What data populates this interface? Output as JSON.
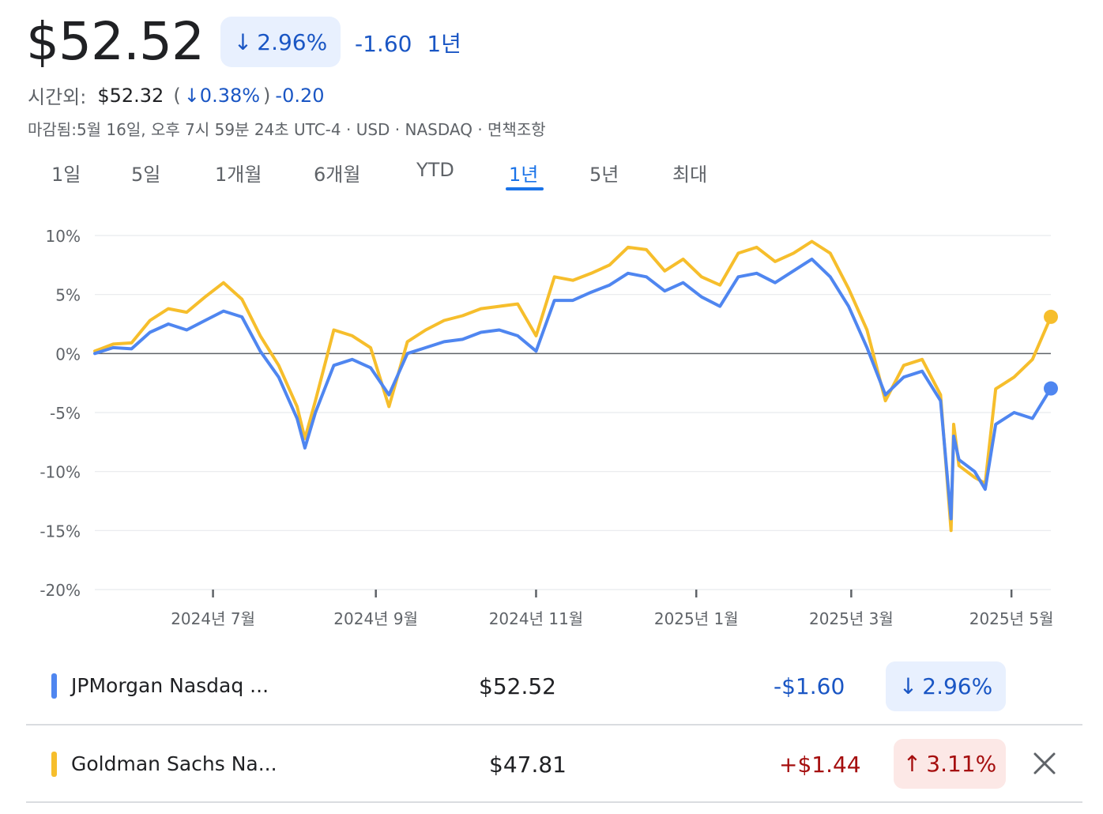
{
  "header": {
    "price": "$52.52",
    "change_pct": "2.96%",
    "change_pct_icon": "arrow-down-icon",
    "change_abs": "-1.60",
    "period": "1년",
    "after_hours_label": "시간외:",
    "after_hours_price": "$52.32",
    "after_hours_pct": "0.38%",
    "after_hours_abs": "-0.20",
    "status_line": "마감됨:5월 16일, 오후 7시 59분 24초 UTC-4 · USD · NASDAQ · 면책조항"
  },
  "tabs": [
    {
      "label": "1일",
      "active": false
    },
    {
      "label": "5일",
      "active": false
    },
    {
      "label": "1개월",
      "active": false
    },
    {
      "label": "6개월",
      "active": false
    },
    {
      "label": "YTD",
      "active": false
    },
    {
      "label": "1년",
      "active": true
    },
    {
      "label": "5년",
      "active": false
    },
    {
      "label": "최대",
      "active": false
    }
  ],
  "colors": {
    "jpm": "#4f86f0",
    "gs": "#f6be2c",
    "negative": "#1a56c4",
    "positive": "#a50e0e",
    "active_tab": "#1a73e8"
  },
  "chart_data": {
    "type": "line",
    "y_unit": "%",
    "ylim": [
      -20,
      10
    ],
    "y_ticks": [
      "10%",
      "5%",
      "0%",
      "-5%",
      "-10%",
      "-15%",
      "-20%"
    ],
    "x_ticks": [
      "2024년 7월",
      "2024년 9월",
      "2024년 11월",
      "2025년 1월",
      "2025년 3월",
      "2025년 5월"
    ],
    "x_tick_dates": [
      "2024-07-01",
      "2024-09-01",
      "2024-11-01",
      "2025-01-01",
      "2025-03-01",
      "2025-05-01"
    ],
    "grid": true,
    "baseline": 0,
    "series": [
      {
        "name": "JPMorgan Nasdaq ...",
        "color": "#4f86f0",
        "x": [
          "2024-05-17",
          "2024-05-24",
          "2024-05-31",
          "2024-06-07",
          "2024-06-14",
          "2024-06-21",
          "2024-06-28",
          "2024-07-05",
          "2024-07-12",
          "2024-07-19",
          "2024-07-26",
          "2024-08-02",
          "2024-08-05",
          "2024-08-09",
          "2024-08-16",
          "2024-08-23",
          "2024-08-30",
          "2024-09-06",
          "2024-09-13",
          "2024-09-20",
          "2024-09-27",
          "2024-10-04",
          "2024-10-11",
          "2024-10-18",
          "2024-10-25",
          "2024-11-01",
          "2024-11-08",
          "2024-11-15",
          "2024-11-22",
          "2024-11-29",
          "2024-12-06",
          "2024-12-13",
          "2024-12-20",
          "2024-12-27",
          "2025-01-03",
          "2025-01-10",
          "2025-01-17",
          "2025-01-24",
          "2025-01-31",
          "2025-02-07",
          "2025-02-14",
          "2025-02-21",
          "2025-02-28",
          "2025-03-07",
          "2025-03-14",
          "2025-03-21",
          "2025-03-28",
          "2025-04-04",
          "2025-04-08",
          "2025-04-09",
          "2025-04-11",
          "2025-04-17",
          "2025-04-21",
          "2025-04-25",
          "2025-05-02",
          "2025-05-09",
          "2025-05-16"
        ],
        "y": [
          0.0,
          0.5,
          0.4,
          1.8,
          2.5,
          2.0,
          2.8,
          3.6,
          3.1,
          0.2,
          -2.0,
          -5.5,
          -8.0,
          -5.0,
          -1.0,
          -0.5,
          -1.2,
          -3.5,
          0.0,
          0.5,
          1.0,
          1.2,
          1.8,
          2.0,
          1.5,
          0.2,
          4.5,
          4.5,
          5.2,
          5.8,
          6.8,
          6.5,
          5.3,
          6.0,
          4.8,
          4.0,
          6.5,
          6.8,
          6.0,
          7.0,
          8.0,
          6.5,
          4.0,
          0.5,
          -3.5,
          -2.0,
          -1.5,
          -4.0,
          -14.0,
          -7.0,
          -9.0,
          -10.0,
          -11.5,
          -6.0,
          -5.0,
          -5.5,
          -2.96
        ]
      },
      {
        "name": "Goldman Sachs Na...",
        "color": "#f6be2c",
        "x": [
          "2024-05-17",
          "2024-05-24",
          "2024-05-31",
          "2024-06-07",
          "2024-06-14",
          "2024-06-21",
          "2024-06-28",
          "2024-07-05",
          "2024-07-12",
          "2024-07-19",
          "2024-07-26",
          "2024-08-02",
          "2024-08-05",
          "2024-08-09",
          "2024-08-16",
          "2024-08-23",
          "2024-08-30",
          "2024-09-06",
          "2024-09-13",
          "2024-09-20",
          "2024-09-27",
          "2024-10-04",
          "2024-10-11",
          "2024-10-18",
          "2024-10-25",
          "2024-11-01",
          "2024-11-08",
          "2024-11-15",
          "2024-11-22",
          "2024-11-29",
          "2024-12-06",
          "2024-12-13",
          "2024-12-20",
          "2024-12-27",
          "2025-01-03",
          "2025-01-10",
          "2025-01-17",
          "2025-01-24",
          "2025-01-31",
          "2025-02-07",
          "2025-02-14",
          "2025-02-21",
          "2025-02-28",
          "2025-03-07",
          "2025-03-14",
          "2025-03-21",
          "2025-03-28",
          "2025-04-04",
          "2025-04-08",
          "2025-04-09",
          "2025-04-11",
          "2025-04-17",
          "2025-04-21",
          "2025-04-25",
          "2025-05-02",
          "2025-05-09",
          "2025-05-16"
        ],
        "y": [
          0.2,
          0.8,
          0.9,
          2.8,
          3.8,
          3.5,
          4.8,
          6.0,
          4.6,
          1.5,
          -1.0,
          -4.5,
          -7.2,
          -4.0,
          2.0,
          1.5,
          0.5,
          -4.5,
          1.0,
          2.0,
          2.8,
          3.2,
          3.8,
          4.0,
          4.2,
          1.5,
          6.5,
          6.2,
          6.8,
          7.5,
          9.0,
          8.8,
          7.0,
          8.0,
          6.5,
          5.8,
          8.5,
          9.0,
          7.8,
          8.5,
          9.5,
          8.5,
          5.5,
          2.0,
          -4.0,
          -1.0,
          -0.5,
          -3.5,
          -15.0,
          -6.0,
          -9.5,
          -10.5,
          -11.0,
          -3.0,
          -2.0,
          -0.5,
          3.11
        ]
      }
    ]
  },
  "comparison": [
    {
      "name": "JPMorgan Nasdaq ...",
      "price": "$52.52",
      "change": "-$1.60",
      "pct": "2.96%",
      "direction": "down",
      "removable": false
    },
    {
      "name": "Goldman Sachs Na...",
      "price": "$47.81",
      "change": "+$1.44",
      "pct": "3.11%",
      "direction": "up",
      "removable": true
    }
  ]
}
